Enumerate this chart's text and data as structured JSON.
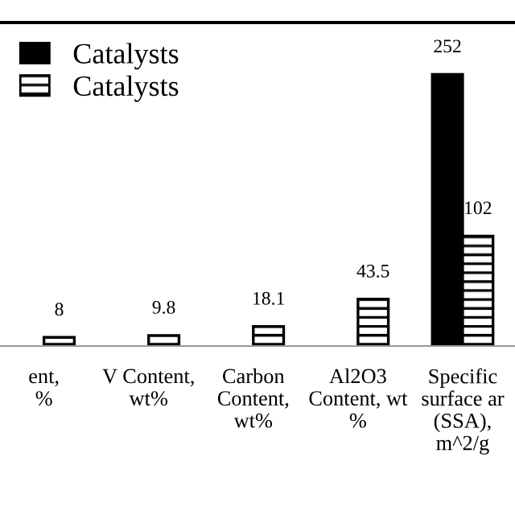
{
  "chart_data": {
    "type": "bar",
    "categories": [
      "ent,\n%",
      "V Content,\nwt%",
      "Carbon\nContent,\nwt%",
      "Al2O3\nContent, wt\n%",
      "Specific\nsurface ar\n(SSA),\nm^2/g"
    ],
    "series": [
      {
        "name": "Catalysts",
        "color": "#000000",
        "values": [
          null,
          null,
          null,
          null,
          252
        ]
      },
      {
        "name": "Catalysts",
        "color": "#000000",
        "values": [
          8,
          9.8,
          18.1,
          43.5,
          102
        ]
      }
    ],
    "data_labels": true,
    "ylim": [
      0,
      300
    ],
    "tick_labels": "x",
    "grid": false,
    "legend": "top left"
  }
}
